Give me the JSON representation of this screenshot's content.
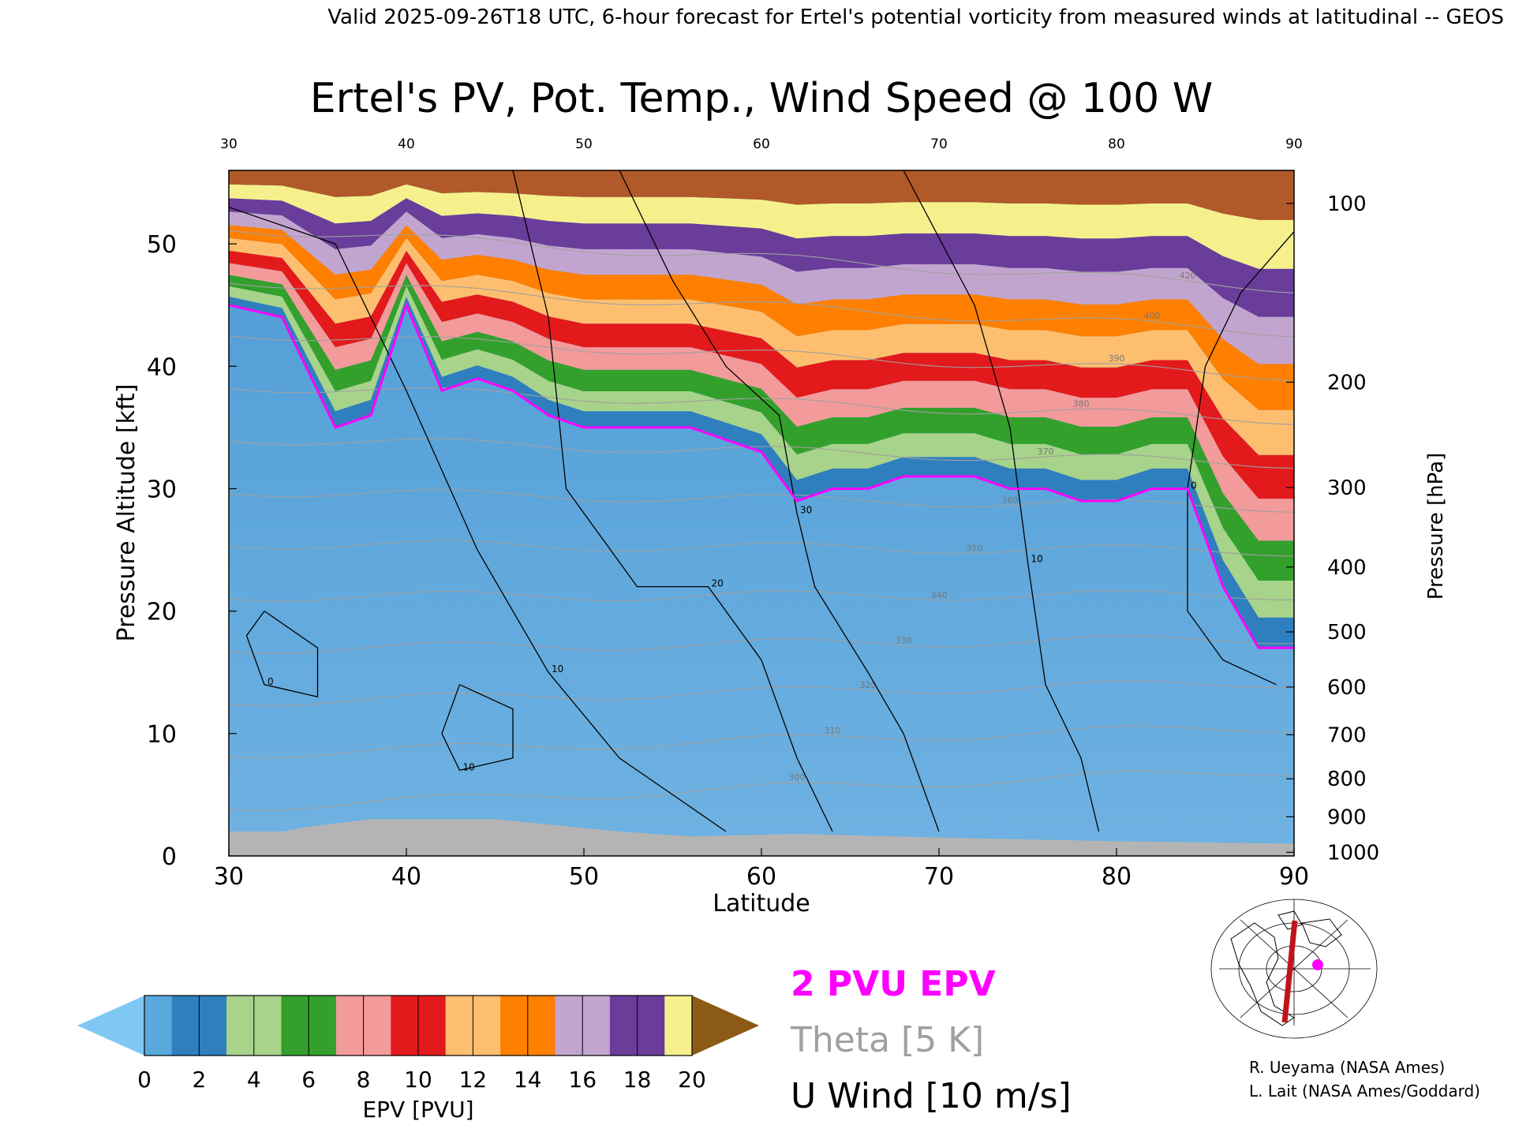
{
  "header": {
    "valid_line": "Valid 2025-09-26T18 UTC, 6-hour forecast for Ertel's potential vorticity from measured winds at latitudinal -- GEOS"
  },
  "chart_data": {
    "type": "heatmap",
    "title": "Ertel's PV, Pot. Temp., Wind Speed @ 100 W",
    "xlabel": "Latitude",
    "ylabel": "Pressure Altitude [kft]",
    "ylabel_right": "Pressure [hPa]",
    "xlim": [
      30,
      90
    ],
    "ylim": [
      0,
      56
    ],
    "x_ticks": [
      30,
      40,
      50,
      60,
      70,
      80,
      90
    ],
    "x_tick_labels": [
      "30",
      "40",
      "50",
      "60",
      "70",
      "80",
      "90"
    ],
    "top_tick_labels": [
      "30",
      "40",
      "50",
      "60",
      "70",
      "80",
      "90"
    ],
    "y_ticks": [
      0,
      10,
      20,
      30,
      40,
      50
    ],
    "y_tick_labels": [
      "0",
      "10",
      "20",
      "30",
      "40",
      "50"
    ],
    "pressure_ticks": [
      {
        "label": "100",
        "kft": 53.3
      },
      {
        "label": "200",
        "kft": 38.7
      },
      {
        "label": "300",
        "kft": 30.1
      },
      {
        "label": "400",
        "kft": 23.6
      },
      {
        "label": "500",
        "kft": 18.3
      },
      {
        "label": "600",
        "kft": 13.8
      },
      {
        "label": "700",
        "kft": 9.9
      },
      {
        "label": "800",
        "kft": 6.3
      },
      {
        "label": "900",
        "kft": 3.2
      },
      {
        "label": "1000",
        "kft": 0.3
      }
    ],
    "colorbar": {
      "label": "EPV [PVU]",
      "ticks": [
        "0",
        "2",
        "4",
        "6",
        "8",
        "10",
        "12",
        "14",
        "16",
        "18",
        "20"
      ],
      "under_color": "#80c8f4",
      "over_color": "#8b5a14",
      "colors": [
        "#5aa9dc",
        "#2f7fbe",
        "#a7d38a",
        "#33a02c",
        "#f39a9a",
        "#e31a1c",
        "#fdbf6f",
        "#ff7f00",
        "#c2a5cf",
        "#6a3d9a",
        "#f6f08c",
        "#b15928"
      ]
    },
    "epv_profile": {
      "lat": [
        30,
        33,
        36,
        38,
        40,
        42,
        44,
        46,
        48,
        50,
        52,
        54,
        56,
        58,
        60,
        62,
        64,
        66,
        68,
        70,
        72,
        74,
        76,
        78,
        80,
        82,
        84,
        86,
        88,
        90
      ],
      "two_pvu_kft": [
        45,
        44,
        35,
        36,
        45,
        38,
        39,
        38,
        36,
        35,
        35,
        35,
        35,
        34,
        33,
        29,
        30,
        30,
        31,
        31,
        31,
        30,
        30,
        29,
        29,
        30,
        30,
        22,
        17,
        17
      ]
    },
    "theta_levels": [
      "300",
      "310",
      "320",
      "330",
      "340",
      "350",
      "360",
      "370",
      "380",
      "390",
      "400",
      "420"
    ],
    "u_wind_labels": [
      "0",
      "10",
      "20",
      "30"
    ],
    "legend": {
      "epv": "2 PVU EPV",
      "theta": "Theta [5 K]",
      "wind": "U Wind [10 m/s]",
      "epv_color": "#ff00ff",
      "theta_color": "#a0a0a0",
      "wind_color": "#000000"
    },
    "ground_color": "#b4b4b4"
  },
  "credits": {
    "line1": "R. Ueyama (NASA Ames)",
    "line2": "L. Lait (NASA Ames/Goddard)"
  }
}
